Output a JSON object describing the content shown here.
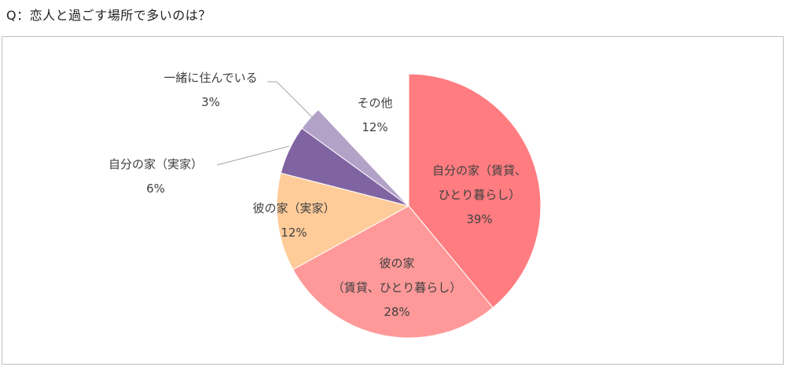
{
  "page": {
    "question": "Q：恋人と過ごす場所で多いのは？"
  },
  "chart_data": {
    "type": "pie",
    "start_angle_deg": 0,
    "direction": "clockwise",
    "slices": [
      {
        "lines": [
          "自分の家（賃貸、",
          "ひとり暮らし）"
        ],
        "value": 39,
        "pct_label": "39%",
        "color": "#ff7c80"
      },
      {
        "lines": [
          "彼の家",
          "（賃貸、ひとり暮らし）"
        ],
        "value": 28,
        "pct_label": "28%",
        "color": "#ff9999"
      },
      {
        "lines": [
          "彼の家（実家）"
        ],
        "value": 12,
        "pct_label": "12%",
        "color": "#ffcc99"
      },
      {
        "lines": [
          "自分の家（実家）"
        ],
        "value": 6,
        "pct_label": "6%",
        "color": "#8064a2"
      },
      {
        "lines": [
          "一緒に住んでいる"
        ],
        "value": 3,
        "pct_label": "3%",
        "color": "#b3a2c7"
      },
      {
        "lines": [
          "その他"
        ],
        "value": 12,
        "pct_label": "12%",
        "color": "#ffffff"
      }
    ]
  }
}
